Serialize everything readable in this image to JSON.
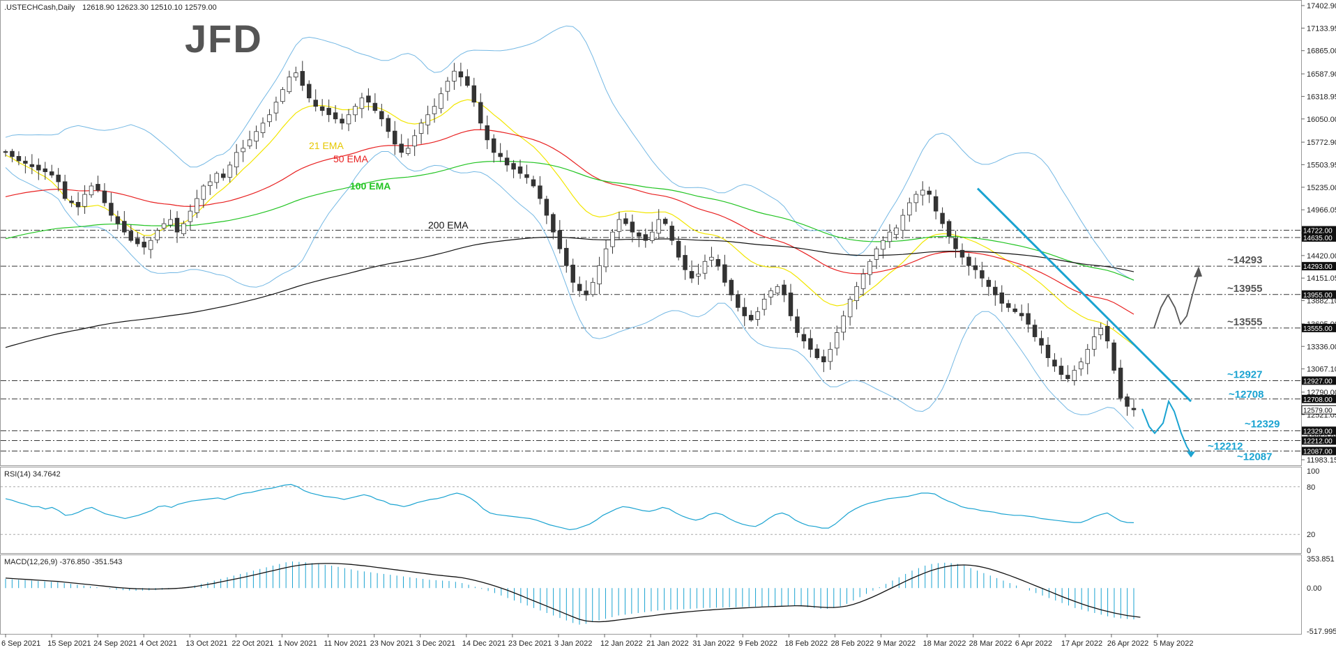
{
  "header": {
    "symbol": ".USTECHCash,Daily",
    "ohlc": "12618.90 12623.30 12510.10 12579.00"
  },
  "logo": "JFD",
  "colors": {
    "bull": "#ffffff",
    "bear": "#333333",
    "ema21": "#f2e600",
    "ema50": "#e82020",
    "ema100": "#22c422",
    "ema200": "#111111",
    "bollinger": "#74b8e4",
    "accent": "#1aa3d1",
    "projection": "#555555"
  },
  "chart_data": [
    {
      "type": "candlestick",
      "title": ".USTECHCash,Daily",
      "ylim": [
        11983.15,
        17402.9
      ],
      "y_ticks": [
        "17402.90",
        "17133.95",
        "16865.00",
        "16587.90",
        "16318.95",
        "16050.00",
        "15772.90",
        "15503.95",
        "15235.00",
        "14966.05",
        "14689.00",
        "14420.00",
        "14151.05",
        "13882.10",
        "13605.00",
        "13336.00",
        "13067.10",
        "12790.00",
        "12521.05",
        "12252.00",
        "11983.15"
      ],
      "x_ticks": [
        "6 Sep 2021",
        "15 Sep 2021",
        "24 Sep 2021",
        "4 Oct 2021",
        "13 Oct 2021",
        "22 Oct 2021",
        "1 Nov 2021",
        "11 Nov 2021",
        "23 Nov 2021",
        "3 Dec 2021",
        "14 Dec 2021",
        "23 Dec 2021",
        "3 Jan 2022",
        "12 Jan 2022",
        "21 Jan 2022",
        "31 Jan 2022",
        "9 Feb 2022",
        "18 Feb 2022",
        "28 Feb 2022",
        "9 Mar 2022",
        "18 Mar 2022",
        "28 Mar 2022",
        "6 Apr 2022",
        "17 Apr 2022",
        "26 Apr 2022",
        "5 May 2022"
      ],
      "close_path": [
        15650,
        15600,
        15550,
        15520,
        15480,
        15440,
        15420,
        15380,
        15300,
        15100,
        15050,
        15000,
        15150,
        15250,
        15200,
        15050,
        14900,
        14800,
        14700,
        14600,
        14560,
        14520,
        14600,
        14720,
        14800,
        14850,
        14700,
        14800,
        14950,
        15100,
        15250,
        15300,
        15400,
        15350,
        15500,
        15650,
        15700,
        15800,
        15900,
        16000,
        16100,
        16250,
        16400,
        16550,
        16600,
        16450,
        16300,
        16200,
        16150,
        16100,
        16050,
        16000,
        16100,
        16200,
        16300,
        16250,
        16150,
        16050,
        15900,
        15750,
        15650,
        15700,
        15850,
        16000,
        16100,
        16200,
        16350,
        16500,
        16620,
        16550,
        16450,
        16250,
        16000,
        15800,
        15650,
        15600,
        15500,
        15450,
        15400,
        15350,
        15250,
        15100,
        14900,
        14700,
        14500,
        14300,
        14100,
        14000,
        13950,
        14100,
        14300,
        14500,
        14700,
        14850,
        14800,
        14700,
        14650,
        14600,
        14700,
        14850,
        14800,
        14600,
        14400,
        14250,
        14150,
        14200,
        14350,
        14400,
        14300,
        14100,
        13950,
        13800,
        13700,
        13650,
        13750,
        13900,
        14000,
        14050,
        13950,
        13700,
        13500,
        13400,
        13300,
        13200,
        13150,
        13300,
        13500,
        13700,
        13900,
        14050,
        14200,
        14350,
        14500,
        14600,
        14700,
        14750,
        14900,
        15050,
        15150,
        15200,
        15150,
        14950,
        14800,
        14650,
        14500,
        14400,
        14300,
        14250,
        14150,
        14050,
        13950,
        13850,
        13800,
        13750,
        13700,
        13600,
        13450,
        13350,
        13200,
        13100,
        13000,
        12950,
        13050,
        13150,
        13300,
        13450,
        13550,
        13400,
        13050,
        12720,
        12620,
        12579
      ],
      "ema21": [
        15620,
        15580,
        15530,
        15490,
        15450,
        15400,
        15360,
        15300,
        15220,
        15120,
        15050,
        15010,
        15000,
        15010,
        15020,
        14990,
        14940,
        14880,
        14810,
        14750,
        14700,
        14660,
        14660,
        14700,
        14740,
        14790,
        14800,
        14810,
        14860,
        14930,
        15010,
        15090,
        15160,
        15220,
        15290,
        15370,
        15450,
        15520,
        15600,
        15680,
        15760,
        15850,
        15950,
        16040,
        16120,
        16170,
        16200,
        16210,
        16210,
        16200,
        16180,
        16160,
        16160,
        16170,
        16190,
        16200,
        16190,
        16170,
        16130,
        16080,
        16030,
        16000,
        15990,
        16000,
        16020,
        16050,
        16090,
        16150,
        16220,
        16260,
        16280,
        16270,
        16230,
        16170,
        16100,
        16040,
        15970,
        15900,
        15840,
        15780,
        15720,
        15640,
        15550,
        15450,
        15350,
        15240,
        15130,
        15030,
        14950,
        14900,
        14880,
        14890,
        14910,
        14940,
        14950,
        14950,
        14940,
        14930,
        14930,
        14940,
        14940,
        14910,
        14860,
        14800,
        14740,
        14700,
        14680,
        14670,
        14650,
        14610,
        14550,
        14480,
        14410,
        14350,
        14310,
        14290,
        14280,
        14280,
        14260,
        14220,
        14160,
        14090,
        14020,
        13950,
        13880,
        13840,
        13820,
        13830,
        13860,
        13900,
        13950,
        14010,
        14070,
        14140,
        14210,
        14270,
        14340,
        14420,
        14500,
        14580,
        14640,
        14670,
        14680,
        14680,
        14660,
        14640,
        14610,
        14580,
        14540,
        14500,
        14450,
        14400,
        14350,
        14300,
        14250,
        14200,
        14140,
        14080,
        14010,
        13940,
        13870,
        13800,
        13750,
        13700,
        13660,
        13640,
        13620,
        13580,
        13530,
        13470,
        13410,
        13350
      ]
    },
    {
      "type": "line",
      "title": "RSI(14) 34.7642",
      "ylim": [
        0,
        100
      ],
      "y_ticks": [
        "100",
        "80",
        "20",
        "0"
      ],
      "values": [
        65,
        63,
        60,
        58,
        55,
        55,
        52,
        54,
        50,
        44,
        45,
        48,
        52,
        54,
        50,
        46,
        44,
        42,
        40,
        42,
        44,
        47,
        50,
        55,
        56,
        54,
        58,
        60,
        62,
        63,
        64,
        65,
        66,
        64,
        67,
        70,
        72,
        73,
        75,
        77,
        78,
        80,
        82,
        83,
        80,
        75,
        72,
        70,
        68,
        67,
        66,
        64,
        66,
        68,
        70,
        68,
        64,
        62,
        58,
        57,
        55,
        57,
        60,
        62,
        64,
        65,
        67,
        70,
        72,
        70,
        66,
        60,
        52,
        47,
        45,
        44,
        43,
        42,
        41,
        40,
        38,
        35,
        32,
        30,
        28,
        26,
        27,
        30,
        33,
        38,
        44,
        48,
        52,
        55,
        54,
        52,
        50,
        49,
        51,
        54,
        52,
        47,
        43,
        40,
        38,
        40,
        45,
        47,
        45,
        40,
        36,
        33,
        31,
        30,
        34,
        40,
        45,
        47,
        44,
        38,
        34,
        31,
        30,
        28,
        28,
        33,
        40,
        47,
        52,
        56,
        59,
        61,
        63,
        65,
        66,
        67,
        68,
        70,
        72,
        72,
        71,
        66,
        62,
        59,
        55,
        53,
        52,
        50,
        49,
        48,
        46,
        45,
        44,
        44,
        43,
        42,
        40,
        39,
        38,
        37,
        36,
        35,
        35,
        38,
        42,
        45,
        47,
        42,
        37,
        35,
        34.7642
      ]
    },
    {
      "type": "bar",
      "title": "MACD(12,26,9) -376.850 -351.543",
      "ylim": [
        -517.995,
        353.851
      ],
      "y_ticks": [
        "353.851",
        "0.00",
        "-517.995"
      ],
      "values": [
        110,
        105,
        100,
        95,
        90,
        85,
        80,
        75,
        70,
        60,
        50,
        40,
        30,
        20,
        10,
        0,
        -10,
        -20,
        -25,
        -30,
        -32,
        -30,
        -28,
        -25,
        -20,
        -15,
        -10,
        0,
        15,
        30,
        50,
        70,
        90,
        110,
        130,
        150,
        170,
        190,
        210,
        230,
        250,
        270,
        290,
        310,
        320,
        315,
        310,
        300,
        290,
        280,
        270,
        255,
        240,
        225,
        210,
        200,
        190,
        180,
        170,
        160,
        150,
        140,
        130,
        120,
        110,
        100,
        95,
        90,
        85,
        75,
        60,
        40,
        15,
        -10,
        -35,
        -60,
        -90,
        -120,
        -150,
        -180,
        -210,
        -240,
        -270,
        -300,
        -330,
        -360,
        -390,
        -420,
        -440,
        -430,
        -410,
        -390,
        -370,
        -350,
        -330,
        -320,
        -310,
        -300,
        -290,
        -280,
        -270,
        -265,
        -260,
        -258,
        -255,
        -250,
        -245,
        -240,
        -238,
        -236,
        -234,
        -232,
        -230,
        -228,
        -226,
        -224,
        -222,
        -220,
        -218,
        -216,
        -214,
        -212,
        -220,
        -230,
        -240,
        -250,
        -250,
        -240,
        -220,
        -190,
        -150,
        -110,
        -70,
        -30,
        10,
        50,
        90,
        130,
        170,
        210,
        240,
        270,
        290,
        300,
        305,
        300,
        290,
        270,
        240,
        210,
        180,
        150,
        120,
        90,
        60,
        30,
        0,
        -30,
        -60,
        -90,
        -120,
        -150,
        -180,
        -210,
        -240,
        -260,
        -280,
        -300,
        -320,
        -340,
        -355,
        -365,
        -372,
        -376.85
      ],
      "signal": [
        120,
        115,
        110,
        105,
        100,
        95,
        90,
        85,
        80,
        72,
        64,
        56,
        48,
        40,
        32,
        24,
        16,
        8,
        2,
        -4,
        -8,
        -10,
        -12,
        -12,
        -10,
        -8,
        -5,
        0,
        8,
        18,
        30,
        44,
        58,
        74,
        90,
        106,
        122,
        138,
        156,
        174,
        192,
        210,
        228,
        246,
        262,
        274,
        284,
        290,
        294,
        296,
        296,
        294,
        290,
        284,
        276,
        268,
        258,
        248,
        238,
        228,
        218,
        208,
        198,
        188,
        178,
        168,
        158,
        150,
        142,
        134,
        124,
        110,
        92,
        72,
        50,
        26,
        0,
        -28,
        -58,
        -90,
        -122,
        -154,
        -186,
        -218,
        -250,
        -282,
        -314,
        -346,
        -376,
        -396,
        -404,
        -406,
        -402,
        -394,
        -384,
        -374,
        -364,
        -354,
        -344,
        -334,
        -324,
        -314,
        -306,
        -298,
        -290,
        -283,
        -276,
        -270,
        -264,
        -258,
        -253,
        -248,
        -244,
        -240,
        -236,
        -232,
        -228,
        -225,
        -222,
        -219,
        -216,
        -213,
        -214,
        -218,
        -224,
        -230,
        -234,
        -234,
        -228,
        -216,
        -196,
        -170,
        -140,
        -106,
        -70,
        -32,
        6,
        44,
        82,
        118,
        152,
        184,
        212,
        236,
        254,
        268,
        276,
        278,
        274,
        264,
        248,
        228,
        204,
        178,
        150,
        120,
        90,
        58,
        26,
        -6,
        -38,
        -70,
        -102,
        -132,
        -162,
        -190,
        -216,
        -240,
        -262,
        -282,
        -300,
        -316,
        -330,
        -341,
        -351.543
      ]
    }
  ],
  "ema_labels": {
    "ema21": "21 EMA",
    "ema50": "50 EMA",
    "ema100": "100 EMA",
    "ema200": "200 EMA"
  },
  "levels": [
    {
      "value": 14722,
      "label": "14722.00",
      "annotation": ""
    },
    {
      "value": 14635,
      "label": "14635.00",
      "annotation": ""
    },
    {
      "value": 14293,
      "label": "14293.00",
      "annotation": "~14293"
    },
    {
      "value": 13955,
      "label": "13955.00",
      "annotation": "~13955"
    },
    {
      "value": 13555,
      "label": "13555.00",
      "annotation": "~13555"
    },
    {
      "value": 12927,
      "label": "12927.00",
      "annotation": "~12927"
    },
    {
      "value": 12708,
      "label": "12708.00",
      "annotation": "~12708"
    },
    {
      "value": 12329,
      "label": "12329.00",
      "annotation": "~12329"
    },
    {
      "value": 12212,
      "label": "12212.00",
      "annotation": "~12212"
    },
    {
      "value": 12087,
      "label": "12087.00",
      "annotation": "~12087"
    }
  ],
  "current_price": {
    "value": 12579,
    "label": "12579.00"
  }
}
